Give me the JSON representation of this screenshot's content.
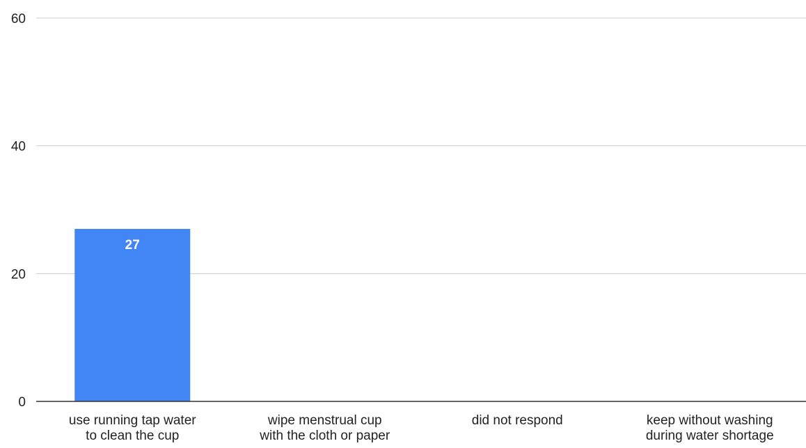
{
  "chart_data": {
    "type": "bar",
    "categories": [
      [
        "use running tap water",
        "to clean the cup"
      ],
      [
        "wipe menstrual cup",
        "with the cloth or paper"
      ],
      [
        "did not respond"
      ],
      [
        "keep without washing",
        "during water shortage"
      ]
    ],
    "values": [
      27,
      0,
      0,
      0
    ],
    "data_labels": [
      "27",
      "",
      "",
      ""
    ],
    "y_ticks": [
      0,
      20,
      40,
      60
    ],
    "ylim": [
      0,
      60
    ],
    "title": "",
    "xlabel": "",
    "ylabel": "",
    "grid": true,
    "legend": "none",
    "colors": {
      "bar": "#4285f4",
      "grid": "#cccccc",
      "axis": "#333333",
      "text": "#222222",
      "data_label": "#ffffff"
    }
  }
}
